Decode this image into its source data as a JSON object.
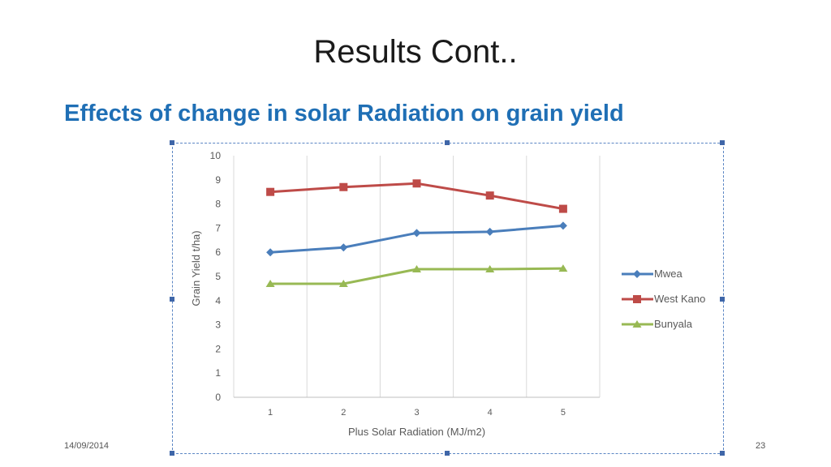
{
  "slide": {
    "title": "Results Cont..",
    "subtitle": "Effects of change in solar Radiation on grain yield",
    "date": "14/09/2014",
    "page_number": "23"
  },
  "chart_data": {
    "type": "line",
    "x": [
      1,
      2,
      3,
      4,
      5
    ],
    "categories": [
      "1",
      "2",
      "3",
      "4",
      "5"
    ],
    "xlabel": "Plus Solar Radiation (MJ/m2)",
    "ylabel": "Grain Yield  t/ha)",
    "ylim": [
      0,
      10
    ],
    "yticks": [
      "0",
      "1",
      "2",
      "3",
      "4",
      "5",
      "6",
      "7",
      "8",
      "9",
      "10"
    ],
    "grid": "vertical",
    "legend_position": "right",
    "series": [
      {
        "name": "Mwea",
        "values": [
          6.0,
          6.2,
          6.8,
          6.85,
          7.1
        ],
        "color": "#4a7ebb",
        "marker": "diamond"
      },
      {
        "name": "West Kano",
        "values": [
          8.5,
          8.7,
          8.85,
          8.35,
          7.8
        ],
        "color": "#be4b48",
        "marker": "square"
      },
      {
        "name": "Bunyala",
        "values": [
          4.7,
          4.7,
          5.3,
          5.3,
          5.33
        ],
        "color": "#98b954",
        "marker": "triangle"
      }
    ]
  }
}
